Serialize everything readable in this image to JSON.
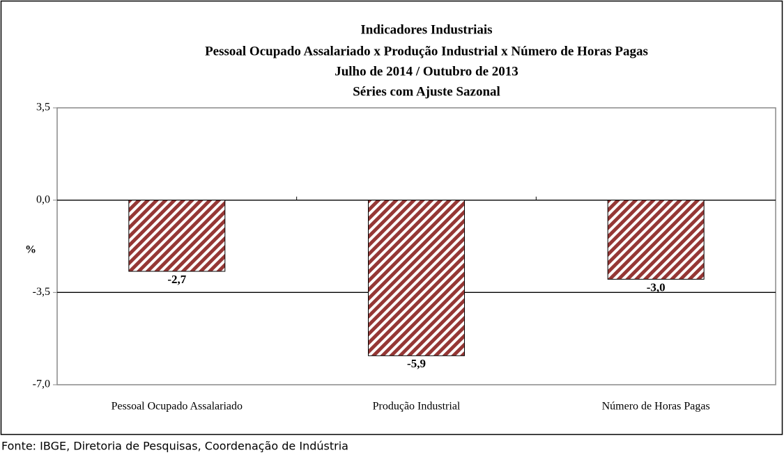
{
  "chart_data": {
    "type": "bar",
    "title": [
      "Indicadores Industriais",
      "Pessoal Ocupado  Assalariado x Produção Industrial x Número de Horas Pagas",
      "Julho de 2014 / Outubro de 2013",
      "Séries com Ajuste Sazonal"
    ],
    "y_label": "%",
    "categories": [
      "Pessoal Ocupado Assalariado",
      "Produção Industrial",
      "Número de Horas Pagas"
    ],
    "values": [
      -2.7,
      -5.9,
      -3.0
    ],
    "value_labels": [
      "-2,7",
      "-5,9",
      "-3,0"
    ],
    "color": "#953735",
    "ylim": [
      -7.0,
      3.5
    ],
    "yticks": [
      {
        "value": 3.5,
        "label": "3,5"
      },
      {
        "value": 0.0,
        "label": "0,0"
      },
      {
        "value": -3.5,
        "label": "-3,5"
      },
      {
        "value": -7.0,
        "label": "-7,0"
      }
    ],
    "grid": true
  },
  "source": "Fonte: IBGE, Diretoria de Pesquisas, Coordenação de Indústria"
}
